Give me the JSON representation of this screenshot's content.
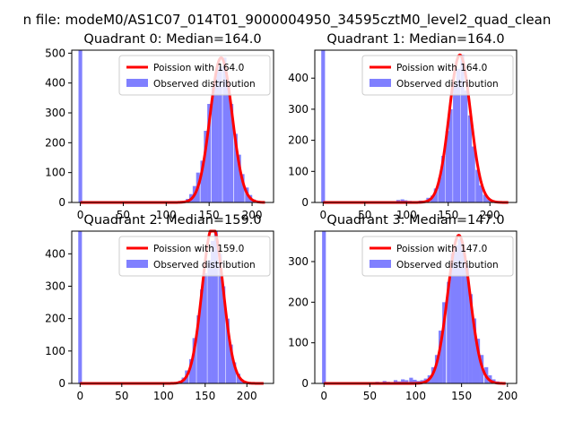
{
  "suptitle": "n file: modeM0/AS1C07_014T01_9000004950_34595cztM0_level2_quad_clean",
  "colors": {
    "hist": "#8080ff",
    "fit": "#ff0000",
    "axes": "#000000",
    "background": "#ffffff"
  },
  "chart_data": [
    {
      "type": "bar",
      "title": "Quadrant 0: Median=164.0",
      "legend": {
        "position": "top-right",
        "entries": [
          "Poission with 164.0",
          "Observed distribution"
        ]
      },
      "xlim": [
        -10,
        225
      ],
      "ylim": [
        0,
        510
      ],
      "xticks": [
        0,
        50,
        100,
        150,
        200
      ],
      "yticks": [
        0,
        100,
        200,
        300,
        400,
        500
      ],
      "xtick_labels": [
        "0",
        "50",
        "100",
        "150",
        "200"
      ],
      "ytick_labels": [
        "0",
        "100",
        "200",
        "300",
        "400",
        "500"
      ],
      "poisson_mean": 164,
      "poisson_peak": 485,
      "poisson_sigma": 12.8,
      "fit_range": [
        0,
        215
      ],
      "spike": {
        "x": 0,
        "width": 4.3,
        "value": 510
      },
      "bin_width": 4.3,
      "bins": [
        [
          116,
          2
        ],
        [
          120,
          5
        ],
        [
          125,
          12
        ],
        [
          129,
          28
        ],
        [
          133,
          55
        ],
        [
          137,
          100
        ],
        [
          142,
          140
        ],
        [
          146,
          240
        ],
        [
          150,
          330
        ],
        [
          155,
          390
        ],
        [
          159,
          440
        ],
        [
          163,
          455
        ],
        [
          168,
          485
        ],
        [
          172,
          400
        ],
        [
          176,
          330
        ],
        [
          181,
          230
        ],
        [
          185,
          160
        ],
        [
          189,
          95
        ],
        [
          194,
          50
        ],
        [
          198,
          25
        ],
        [
          202,
          10
        ],
        [
          207,
          4
        ]
      ]
    },
    {
      "type": "bar",
      "title": "Quadrant 1: Median=164.0",
      "legend": {
        "position": "top-right",
        "entries": [
          "Poission with 164.0",
          "Observed distribution"
        ]
      },
      "xlim": [
        -10,
        232
      ],
      "ylim": [
        0,
        490
      ],
      "xticks": [
        0,
        50,
        100,
        150,
        200
      ],
      "yticks": [
        0,
        100,
        200,
        300,
        400
      ],
      "xtick_labels": [
        "0",
        "50",
        "100",
        "150",
        "200"
      ],
      "ytick_labels": [
        "0",
        "100",
        "200",
        "300",
        "400"
      ],
      "poisson_mean": 164,
      "poisson_peak": 475,
      "poisson_sigma": 12.8,
      "fit_range": [
        0,
        222
      ],
      "spike": {
        "x": 0,
        "width": 4.5,
        "value": 490
      },
      "bin_width": 4.5,
      "bins": [
        [
          72,
          3
        ],
        [
          81,
          4
        ],
        [
          90,
          8
        ],
        [
          95,
          10
        ],
        [
          99,
          7
        ],
        [
          104,
          5
        ],
        [
          113,
          4
        ],
        [
          117,
          6
        ],
        [
          126,
          15
        ],
        [
          131,
          22
        ],
        [
          135,
          45
        ],
        [
          140,
          80
        ],
        [
          144,
          150
        ],
        [
          149,
          230
        ],
        [
          153,
          300
        ],
        [
          158,
          380
        ],
        [
          162,
          430
        ],
        [
          167,
          475
        ],
        [
          171,
          360
        ],
        [
          176,
          280
        ],
        [
          180,
          180
        ],
        [
          185,
          105
        ],
        [
          189,
          55
        ],
        [
          194,
          25
        ],
        [
          198,
          10
        ],
        [
          203,
          4
        ]
      ]
    },
    {
      "type": "bar",
      "title": "Quadrant 2: Median=159.0",
      "legend": {
        "position": "top-right",
        "entries": [
          "Poission with 159.0",
          "Observed distribution"
        ]
      },
      "xlim": [
        -10,
        232
      ],
      "ylim": [
        0,
        470
      ],
      "xticks": [
        0,
        50,
        100,
        150,
        200
      ],
      "yticks": [
        0,
        100,
        200,
        300,
        400
      ],
      "xtick_labels": [
        "0",
        "50",
        "100",
        "150",
        "200"
      ],
      "ytick_labels": [
        "0",
        "100",
        "200",
        "300",
        "400"
      ],
      "poisson_mean": 159,
      "poisson_peak": 485,
      "poisson_sigma": 12.6,
      "fit_range": [
        0,
        220
      ],
      "spike": {
        "x": 0,
        "width": 4.4,
        "value": 470
      },
      "bin_width": 4.4,
      "bins": [
        [
          115,
          3
        ],
        [
          120,
          8
        ],
        [
          124,
          18
        ],
        [
          128,
          40
        ],
        [
          133,
          75
        ],
        [
          137,
          140
        ],
        [
          142,
          210
        ],
        [
          146,
          290
        ],
        [
          150,
          340
        ],
        [
          155,
          380
        ],
        [
          159,
          440
        ],
        [
          163,
          480
        ],
        [
          168,
          400
        ],
        [
          172,
          300
        ],
        [
          177,
          200
        ],
        [
          181,
          120
        ],
        [
          185,
          65
        ],
        [
          190,
          30
        ],
        [
          194,
          12
        ],
        [
          199,
          5
        ]
      ]
    },
    {
      "type": "bar",
      "title": "Quadrant 3: Median=147.0",
      "legend": {
        "position": "top-right",
        "entries": [
          "Poission with 147.0",
          "Observed distribution"
        ]
      },
      "xlim": [
        -10,
        210
      ],
      "ylim": [
        0,
        375
      ],
      "xticks": [
        0,
        50,
        100,
        150,
        200
      ],
      "yticks": [
        0,
        100,
        200,
        300
      ],
      "xtick_labels": [
        "0",
        "50",
        "100",
        "150",
        "200"
      ],
      "ytick_labels": [
        "0",
        "100",
        "200",
        "300"
      ],
      "poisson_mean": 147,
      "poisson_peak": 365,
      "poisson_sigma": 12.1,
      "fit_range": [
        0,
        198
      ],
      "spike": {
        "x": 0,
        "width": 4.1,
        "value": 375
      },
      "bin_width": 4.1,
      "bins": [
        [
          58,
          4
        ],
        [
          66,
          6
        ],
        [
          70,
          4
        ],
        [
          78,
          8
        ],
        [
          82,
          5
        ],
        [
          86,
          10
        ],
        [
          90,
          8
        ],
        [
          95,
          14
        ],
        [
          99,
          9
        ],
        [
          103,
          6
        ],
        [
          107,
          8
        ],
        [
          111,
          12
        ],
        [
          115,
          20
        ],
        [
          119,
          40
        ],
        [
          123,
          70
        ],
        [
          127,
          130
        ],
        [
          131,
          200
        ],
        [
          136,
          250
        ],
        [
          140,
          320
        ],
        [
          144,
          340
        ],
        [
          148,
          355
        ],
        [
          152,
          330
        ],
        [
          156,
          290
        ],
        [
          160,
          220
        ],
        [
          164,
          160
        ],
        [
          168,
          110
        ],
        [
          172,
          70
        ],
        [
          177,
          40
        ],
        [
          181,
          20
        ],
        [
          185,
          10
        ],
        [
          189,
          5
        ]
      ]
    }
  ]
}
